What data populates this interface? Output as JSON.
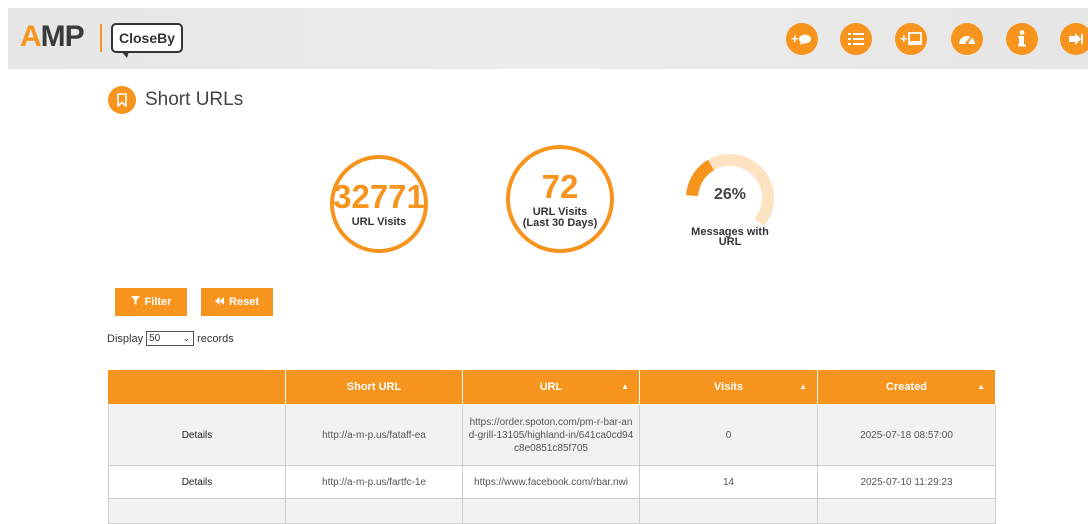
{
  "header": {
    "logo_amp": "AMP",
    "logo_closeby": "CloseBy",
    "buttons": [
      {
        "name": "add-message-button",
        "icon": "chat-plus-icon",
        "label": "+"
      },
      {
        "name": "list-button",
        "icon": "list-icon",
        "label": ""
      },
      {
        "name": "add-device-button",
        "icon": "monitor-plus-icon",
        "label": "+"
      },
      {
        "name": "dashboard-button",
        "icon": "speedometer-icon",
        "label": ""
      },
      {
        "name": "info-button",
        "icon": "info-icon",
        "label": "i"
      },
      {
        "name": "logout-button",
        "icon": "sign-out-icon",
        "label": ""
      }
    ],
    "accent_color": "#f7941d"
  },
  "page": {
    "title": "Short URLs",
    "title_icon": "bookmark-icon"
  },
  "stats": {
    "url_visits": {
      "value": "32771",
      "label": "URL Visits"
    },
    "url_visits_30": {
      "value": "72",
      "label_line1": "URL Visits",
      "label_line2": "(Last 30 Days)"
    },
    "messages_with_url": {
      "percent": "26%",
      "fraction": 0.26,
      "label_line1": "Messages with",
      "label_line2": "URL"
    }
  },
  "actions": {
    "filter_label": "Filter",
    "reset_label": "Reset"
  },
  "display": {
    "prefix": "Display",
    "value": "50",
    "suffix": "records"
  },
  "table": {
    "columns": [
      "",
      "Short URL",
      "URL",
      "Visits",
      "Created"
    ],
    "rows": [
      {
        "details": "Details",
        "short_url": "http://a-m-p.us/fataff-ea",
        "url": "https://order.spoton.com/pm-r-bar-and-grill-13105/highland-in/641ca0cd94c8e0851c85f705",
        "visits": "0",
        "created": "2025-07-18 08:57:00"
      },
      {
        "details": "Details",
        "short_url": "http://a-m-p.us/fartfc-1e",
        "url": "https://www.facebook.com/rbar.nwi",
        "visits": "14",
        "created": "2025-07-10 11:29:23"
      }
    ]
  }
}
